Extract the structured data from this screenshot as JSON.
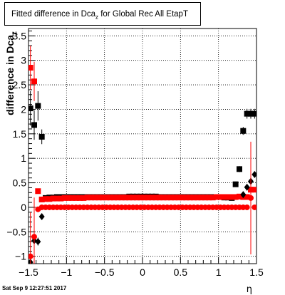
{
  "chart_data": {
    "type": "scatter",
    "title": "Fitted difference in Dca",
    "title_subscript": "z",
    "title_suffix": " for Global Rec All EtapT",
    "xlabel": "η",
    "ylabel": "difference in Dca",
    "ylabel_subscript": "z",
    "xlim": [
      -1.5,
      1.5
    ],
    "ylim": [
      -1.15,
      3.65
    ],
    "grid": true,
    "x_ticks": [
      -1.5,
      -1,
      -0.5,
      0,
      0.5,
      1,
      1.5
    ],
    "x_tick_labels": [
      "−1.5",
      "−1",
      "−0.5",
      "0",
      "0.5",
      "1",
      "1.5"
    ],
    "y_ticks": [
      -1,
      -0.5,
      0,
      0.5,
      1,
      1.5,
      2,
      2.5,
      3,
      3.5
    ],
    "y_tick_labels": [
      "−1",
      "−0.5",
      "0",
      "0.5",
      "1",
      "1.5",
      "2",
      "2.5",
      "3",
      "3.5"
    ],
    "series": [
      {
        "color": "#000000",
        "marker": "square",
        "points": [
          {
            "x": -1.475,
            "y": 2.02,
            "err": 0.35
          },
          {
            "x": -1.425,
            "y": 1.68,
            "err": 0.3
          },
          {
            "x": -1.375,
            "y": 2.07,
            "err": 0.3
          },
          {
            "x": -1.325,
            "y": 1.44,
            "err": 0.15
          },
          {
            "x": -1.275,
            "y": 0.19,
            "err": 0.0
          },
          {
            "x": -1.225,
            "y": 0.2,
            "err": 0.0
          },
          {
            "x": -1.175,
            "y": 0.2,
            "err": 0.0
          },
          {
            "x": -1.125,
            "y": 0.21,
            "err": 0.0
          },
          {
            "x": -1.075,
            "y": 0.21,
            "err": 0.0
          },
          {
            "x": -1.025,
            "y": 0.21,
            "err": 0.0
          },
          {
            "x": -0.975,
            "y": 0.21,
            "err": 0.0
          },
          {
            "x": -0.925,
            "y": 0.21,
            "err": 0.0
          },
          {
            "x": -0.875,
            "y": 0.21,
            "err": 0.0
          },
          {
            "x": -0.825,
            "y": 0.21,
            "err": 0.0
          },
          {
            "x": -0.775,
            "y": 0.21,
            "err": 0.0
          },
          {
            "x": -0.725,
            "y": 0.21,
            "err": 0.0
          },
          {
            "x": -0.675,
            "y": 0.21,
            "err": 0.0
          },
          {
            "x": -0.625,
            "y": 0.21,
            "err": 0.0
          },
          {
            "x": -0.575,
            "y": 0.21,
            "err": 0.0
          },
          {
            "x": -0.525,
            "y": 0.21,
            "err": 0.0
          },
          {
            "x": -0.475,
            "y": 0.21,
            "err": 0.0
          },
          {
            "x": -0.425,
            "y": 0.21,
            "err": 0.0
          },
          {
            "x": -0.375,
            "y": 0.21,
            "err": 0.0
          },
          {
            "x": -0.325,
            "y": 0.21,
            "err": 0.0
          },
          {
            "x": -0.275,
            "y": 0.21,
            "err": 0.0
          },
          {
            "x": -0.225,
            "y": 0.21,
            "err": 0.0
          },
          {
            "x": -0.175,
            "y": 0.22,
            "err": 0.0
          },
          {
            "x": -0.125,
            "y": 0.22,
            "err": 0.0
          },
          {
            "x": -0.075,
            "y": 0.22,
            "err": 0.0
          },
          {
            "x": -0.025,
            "y": 0.22,
            "err": 0.0
          },
          {
            "x": 0.025,
            "y": 0.22,
            "err": 0.0
          },
          {
            "x": 0.075,
            "y": 0.22,
            "err": 0.0
          },
          {
            "x": 0.125,
            "y": 0.22,
            "err": 0.0
          },
          {
            "x": 0.175,
            "y": 0.22,
            "err": 0.0
          },
          {
            "x": 0.225,
            "y": 0.21,
            "err": 0.0
          },
          {
            "x": 0.275,
            "y": 0.21,
            "err": 0.0
          },
          {
            "x": 0.325,
            "y": 0.21,
            "err": 0.0
          },
          {
            "x": 0.375,
            "y": 0.21,
            "err": 0.0
          },
          {
            "x": 0.425,
            "y": 0.21,
            "err": 0.0
          },
          {
            "x": 0.475,
            "y": 0.21,
            "err": 0.0
          },
          {
            "x": 0.525,
            "y": 0.21,
            "err": 0.0
          },
          {
            "x": 0.575,
            "y": 0.21,
            "err": 0.0
          },
          {
            "x": 0.625,
            "y": 0.21,
            "err": 0.0
          },
          {
            "x": 0.675,
            "y": 0.21,
            "err": 0.0
          },
          {
            "x": 0.725,
            "y": 0.21,
            "err": 0.0
          },
          {
            "x": 0.775,
            "y": 0.21,
            "err": 0.0
          },
          {
            "x": 0.825,
            "y": 0.21,
            "err": 0.0
          },
          {
            "x": 0.875,
            "y": 0.21,
            "err": 0.0
          },
          {
            "x": 0.925,
            "y": 0.21,
            "err": 0.0
          },
          {
            "x": 0.975,
            "y": 0.21,
            "err": 0.0
          },
          {
            "x": 1.025,
            "y": 0.21,
            "err": 0.0
          },
          {
            "x": 1.075,
            "y": 0.2,
            "err": 0.0
          },
          {
            "x": 1.125,
            "y": 0.2,
            "err": 0.0
          },
          {
            "x": 1.175,
            "y": 0.19,
            "err": 0.0
          },
          {
            "x": 1.225,
            "y": 0.47,
            "err": 0.05
          },
          {
            "x": 1.275,
            "y": 0.78,
            "err": 0.06
          },
          {
            "x": 1.325,
            "y": 1.56,
            "err": 0.08
          },
          {
            "x": 1.375,
            "y": 1.91,
            "err": 0.1
          },
          {
            "x": 1.425,
            "y": 1.91,
            "err": 0.1
          },
          {
            "x": 1.475,
            "y": 1.91,
            "err": 0.1
          }
        ]
      },
      {
        "color": "#ff0000",
        "marker": "square",
        "points": [
          {
            "x": -1.475,
            "y": 2.85,
            "err": 0.45
          },
          {
            "x": -1.425,
            "y": 2.57,
            "err": 0.4
          },
          {
            "x": -1.375,
            "y": 0.33,
            "err": 0.0
          },
          {
            "x": -1.325,
            "y": 0.16,
            "err": 0.0
          },
          {
            "x": -1.275,
            "y": 0.17,
            "err": 0.0
          },
          {
            "x": -1.225,
            "y": 0.17,
            "err": 0.0
          },
          {
            "x": -1.175,
            "y": 0.18,
            "err": 0.0
          },
          {
            "x": -1.125,
            "y": 0.18,
            "err": 0.0
          },
          {
            "x": -1.075,
            "y": 0.18,
            "err": 0.0
          },
          {
            "x": -1.025,
            "y": 0.19,
            "err": 0.0
          },
          {
            "x": -0.975,
            "y": 0.19,
            "err": 0.0
          },
          {
            "x": -0.925,
            "y": 0.19,
            "err": 0.0
          },
          {
            "x": -0.875,
            "y": 0.19,
            "err": 0.0
          },
          {
            "x": -0.825,
            "y": 0.19,
            "err": 0.0
          },
          {
            "x": -0.775,
            "y": 0.19,
            "err": 0.0
          },
          {
            "x": -0.725,
            "y": 0.2,
            "err": 0.0
          },
          {
            "x": -0.675,
            "y": 0.2,
            "err": 0.0
          },
          {
            "x": -0.625,
            "y": 0.2,
            "err": 0.0
          },
          {
            "x": -0.575,
            "y": 0.2,
            "err": 0.0
          },
          {
            "x": -0.525,
            "y": 0.2,
            "err": 0.0
          },
          {
            "x": -0.475,
            "y": 0.2,
            "err": 0.0
          },
          {
            "x": -0.425,
            "y": 0.2,
            "err": 0.0
          },
          {
            "x": -0.375,
            "y": 0.2,
            "err": 0.0
          },
          {
            "x": -0.325,
            "y": 0.2,
            "err": 0.0
          },
          {
            "x": -0.275,
            "y": 0.2,
            "err": 0.0
          },
          {
            "x": -0.225,
            "y": 0.2,
            "err": 0.0
          },
          {
            "x": -0.175,
            "y": 0.2,
            "err": 0.0
          },
          {
            "x": -0.125,
            "y": 0.2,
            "err": 0.0
          },
          {
            "x": -0.075,
            "y": 0.2,
            "err": 0.0
          },
          {
            "x": -0.025,
            "y": 0.2,
            "err": 0.0
          },
          {
            "x": 0.025,
            "y": 0.2,
            "err": 0.0
          },
          {
            "x": 0.075,
            "y": 0.2,
            "err": 0.0
          },
          {
            "x": 0.125,
            "y": 0.2,
            "err": 0.0
          },
          {
            "x": 0.175,
            "y": 0.2,
            "err": 0.0
          },
          {
            "x": 0.225,
            "y": 0.2,
            "err": 0.0
          },
          {
            "x": 0.275,
            "y": 0.2,
            "err": 0.0
          },
          {
            "x": 0.325,
            "y": 0.2,
            "err": 0.0
          },
          {
            "x": 0.375,
            "y": 0.2,
            "err": 0.0
          },
          {
            "x": 0.425,
            "y": 0.2,
            "err": 0.0
          },
          {
            "x": 0.475,
            "y": 0.2,
            "err": 0.0
          },
          {
            "x": 0.525,
            "y": 0.2,
            "err": 0.0
          },
          {
            "x": 0.575,
            "y": 0.2,
            "err": 0.0
          },
          {
            "x": 0.625,
            "y": 0.2,
            "err": 0.0
          },
          {
            "x": 0.675,
            "y": 0.2,
            "err": 0.0
          },
          {
            "x": 0.725,
            "y": 0.2,
            "err": 0.0
          },
          {
            "x": 0.775,
            "y": 0.2,
            "err": 0.0
          },
          {
            "x": 0.825,
            "y": 0.2,
            "err": 0.0
          },
          {
            "x": 0.875,
            "y": 0.2,
            "err": 0.0
          },
          {
            "x": 0.925,
            "y": 0.2,
            "err": 0.0
          },
          {
            "x": 0.975,
            "y": 0.21,
            "err": 0.0
          },
          {
            "x": 1.025,
            "y": 0.21,
            "err": 0.0
          },
          {
            "x": 1.075,
            "y": 0.21,
            "err": 0.0
          },
          {
            "x": 1.125,
            "y": 0.21,
            "err": 0.0
          },
          {
            "x": 1.175,
            "y": 0.21,
            "err": 0.0
          },
          {
            "x": 1.225,
            "y": 0.21,
            "err": 0.0
          },
          {
            "x": 1.275,
            "y": 0.22,
            "err": 0.0
          },
          {
            "x": 1.325,
            "y": 0.21,
            "err": 0.0
          },
          {
            "x": 1.375,
            "y": 0.21,
            "err": 0.0
          },
          {
            "x": 1.425,
            "y": 0.36,
            "err": 0.0
          },
          {
            "x": 1.475,
            "y": 0.36,
            "err": 0.0
          }
        ]
      },
      {
        "color": "#000000",
        "marker": "diamond",
        "points": [
          {
            "x": -1.475,
            "y": -1.12,
            "err": 0.1
          },
          {
            "x": -1.425,
            "y": -0.68,
            "err": 0.08
          },
          {
            "x": -1.375,
            "y": -0.7,
            "err": 0.08
          },
          {
            "x": -1.325,
            "y": -0.19,
            "err": 0.0
          },
          {
            "x": 1.325,
            "y": 0.26,
            "err": 0.0
          },
          {
            "x": 1.375,
            "y": 0.41,
            "err": 0.0
          },
          {
            "x": 1.425,
            "y": 0.53,
            "err": 0.0
          },
          {
            "x": 1.475,
            "y": 0.67,
            "err": 0.05
          }
        ]
      },
      {
        "color": "#ff0000",
        "marker": "circle",
        "points": [
          {
            "x": -1.475,
            "y": -1.0,
            "err": 0.9
          },
          {
            "x": -1.425,
            "y": -0.6,
            "err": 0.8
          },
          {
            "x": -1.375,
            "y": -0.04,
            "err": 0.0
          },
          {
            "x": -1.325,
            "y": 0.0,
            "err": 0.0
          },
          {
            "x": -1.275,
            "y": 0.0,
            "err": 0.0
          },
          {
            "x": -1.225,
            "y": 0.0,
            "err": 0.0
          },
          {
            "x": -1.175,
            "y": 0.0,
            "err": 0.0
          },
          {
            "x": -1.125,
            "y": 0.0,
            "err": 0.0
          },
          {
            "x": -1.075,
            "y": 0.0,
            "err": 0.0
          },
          {
            "x": -1.025,
            "y": 0.0,
            "err": 0.0
          },
          {
            "x": -0.975,
            "y": 0.0,
            "err": 0.0
          },
          {
            "x": -0.925,
            "y": 0.0,
            "err": 0.0
          },
          {
            "x": -0.875,
            "y": 0.0,
            "err": 0.0
          },
          {
            "x": -0.825,
            "y": 0.0,
            "err": 0.0
          },
          {
            "x": -0.775,
            "y": 0.0,
            "err": 0.0
          },
          {
            "x": -0.725,
            "y": 0.0,
            "err": 0.0
          },
          {
            "x": -0.675,
            "y": 0.0,
            "err": 0.0
          },
          {
            "x": -0.625,
            "y": 0.0,
            "err": 0.0
          },
          {
            "x": -0.575,
            "y": 0.0,
            "err": 0.0
          },
          {
            "x": -0.525,
            "y": 0.0,
            "err": 0.0
          },
          {
            "x": -0.475,
            "y": 0.0,
            "err": 0.0
          },
          {
            "x": -0.425,
            "y": 0.0,
            "err": 0.0
          },
          {
            "x": -0.375,
            "y": 0.0,
            "err": 0.0
          },
          {
            "x": -0.325,
            "y": 0.0,
            "err": 0.0
          },
          {
            "x": -0.275,
            "y": 0.0,
            "err": 0.0
          },
          {
            "x": -0.225,
            "y": 0.0,
            "err": 0.0
          },
          {
            "x": -0.175,
            "y": 0.0,
            "err": 0.0
          },
          {
            "x": -0.125,
            "y": 0.0,
            "err": 0.0
          },
          {
            "x": -0.075,
            "y": 0.0,
            "err": 0.0
          },
          {
            "x": -0.025,
            "y": 0.0,
            "err": 0.0
          },
          {
            "x": 0.025,
            "y": 0.0,
            "err": 0.0
          },
          {
            "x": 0.075,
            "y": 0.0,
            "err": 0.0
          },
          {
            "x": 0.125,
            "y": 0.0,
            "err": 0.0
          },
          {
            "x": 0.175,
            "y": 0.0,
            "err": 0.0
          },
          {
            "x": 0.225,
            "y": 0.0,
            "err": 0.0
          },
          {
            "x": 0.275,
            "y": 0.0,
            "err": 0.0
          },
          {
            "x": 0.325,
            "y": 0.0,
            "err": 0.0
          },
          {
            "x": 0.375,
            "y": 0.0,
            "err": 0.0
          },
          {
            "x": 0.425,
            "y": 0.0,
            "err": 0.0
          },
          {
            "x": 0.475,
            "y": 0.0,
            "err": 0.0
          },
          {
            "x": 0.525,
            "y": 0.0,
            "err": 0.0
          },
          {
            "x": 0.575,
            "y": 0.0,
            "err": 0.0
          },
          {
            "x": 0.625,
            "y": 0.0,
            "err": 0.0
          },
          {
            "x": 0.675,
            "y": 0.0,
            "err": 0.0
          },
          {
            "x": 0.725,
            "y": 0.0,
            "err": 0.0
          },
          {
            "x": 0.775,
            "y": 0.0,
            "err": 0.0
          },
          {
            "x": 0.825,
            "y": 0.0,
            "err": 0.0
          },
          {
            "x": 0.875,
            "y": 0.0,
            "err": 0.0
          },
          {
            "x": 0.925,
            "y": 0.0,
            "err": 0.0
          },
          {
            "x": 0.975,
            "y": 0.0,
            "err": 0.0
          },
          {
            "x": 1.025,
            "y": 0.0,
            "err": 0.0
          },
          {
            "x": 1.075,
            "y": 0.0,
            "err": 0.0
          },
          {
            "x": 1.125,
            "y": 0.0,
            "err": 0.0
          },
          {
            "x": 1.175,
            "y": 0.0,
            "err": 0.0
          },
          {
            "x": 1.225,
            "y": 0.0,
            "err": 0.0
          },
          {
            "x": 1.275,
            "y": 0.0,
            "err": 0.0
          },
          {
            "x": 1.325,
            "y": 0.0,
            "err": 0.0
          },
          {
            "x": 1.375,
            "y": 0.0,
            "err": 0.0
          },
          {
            "x": 1.425,
            "y": 0.19,
            "err": 1.15
          },
          {
            "x": 1.475,
            "y": 0.0,
            "err": 0.0
          }
        ]
      }
    ]
  },
  "footer": {
    "timestamp": "Sat Sep  9 12:27:51 2017"
  }
}
